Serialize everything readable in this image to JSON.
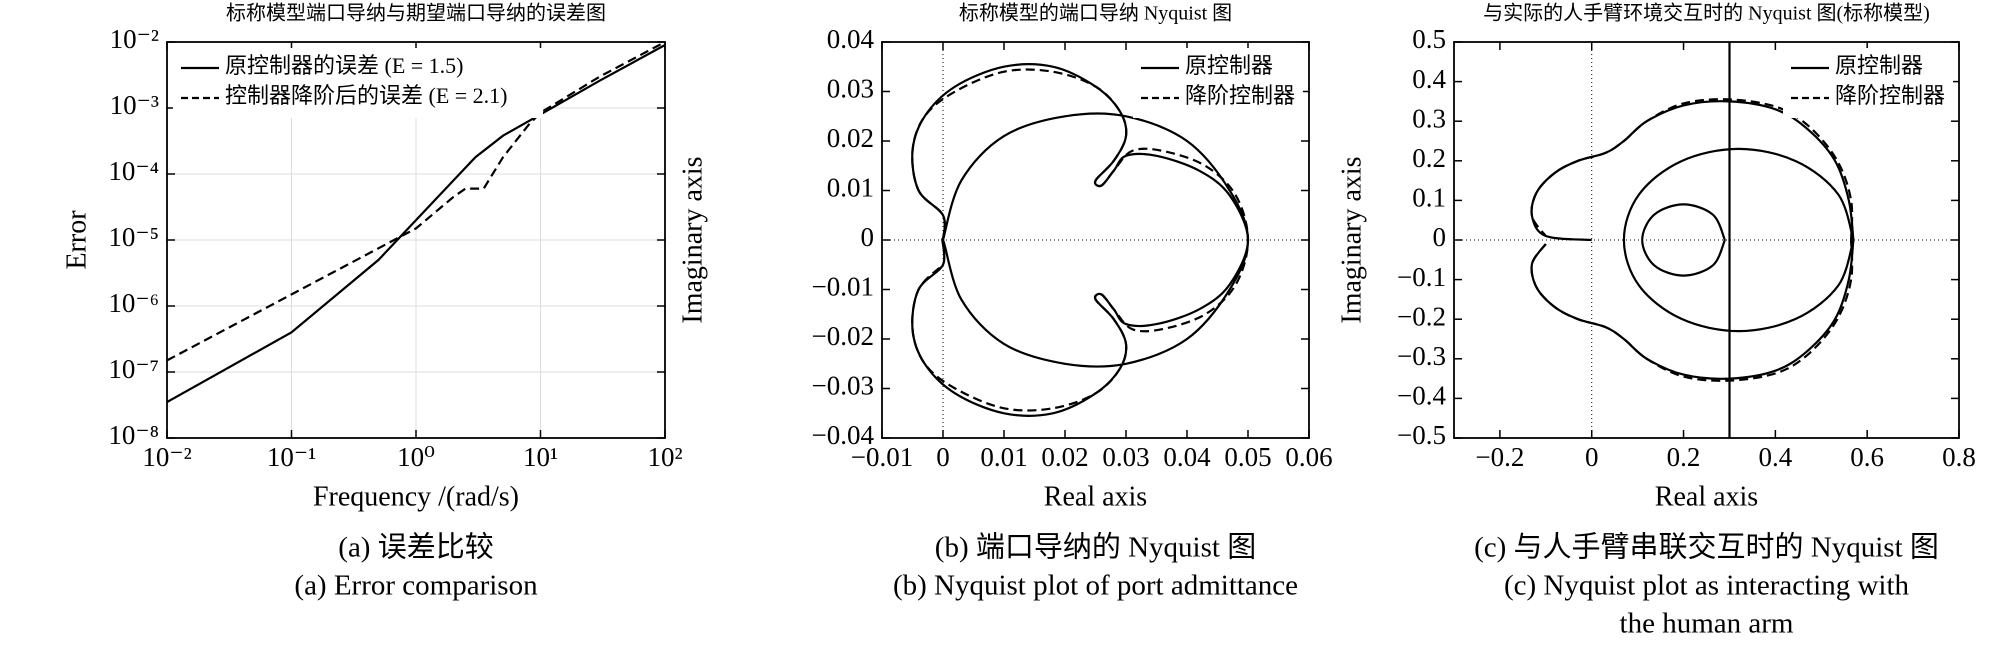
{
  "chart_data": [
    {
      "type": "line",
      "title": "标称模型端口导纳与期望端口导纳的误差图",
      "xlabel": "Frequency /(rad/s)",
      "ylabel": "Error",
      "xscale": "log",
      "yscale": "log",
      "grid": true,
      "legend": "upper left",
      "xlim": [
        0.01,
        100
      ],
      "ylim": [
        1e-08,
        0.01
      ],
      "xticks": [
        {
          "value": 0.01,
          "label": "10⁻²"
        },
        {
          "value": 0.1,
          "label": "10⁻¹"
        },
        {
          "value": 1,
          "label": "10⁰"
        },
        {
          "value": 10,
          "label": "10¹"
        },
        {
          "value": 100,
          "label": "10²"
        }
      ],
      "yticks": [
        {
          "value": 1e-08,
          "label": "10⁻⁸"
        },
        {
          "value": 1e-07,
          "label": "10⁻⁷"
        },
        {
          "value": 1e-06,
          "label": "10⁻⁶"
        },
        {
          "value": 1e-05,
          "label": "10⁻⁵"
        },
        {
          "value": 0.0001,
          "label": "10⁻⁴"
        },
        {
          "value": 0.001,
          "label": "10⁻³"
        },
        {
          "value": 0.01,
          "label": "10⁻²"
        }
      ],
      "series": [
        {
          "name": "原控制器的误差 (E = 1.5)",
          "color": "#000000",
          "linestyle": "solid",
          "x": [
            0.01,
            0.1,
            0.5,
            1,
            2,
            3,
            5,
            10,
            30,
            100
          ],
          "values": [
            3.5e-08,
            4e-07,
            5e-06,
            2e-05,
            8e-05,
            0.00018,
            0.00038,
            0.0008,
            0.0026,
            0.009
          ]
        },
        {
          "name": "控制器降阶后的误差 (E = 2.1)",
          "color": "#000000",
          "linestyle": "dashed",
          "x": [
            0.01,
            0.1,
            1,
            2,
            2.5,
            3.5,
            5,
            8,
            10,
            30,
            100
          ],
          "values": [
            1.5e-07,
            1.5e-06,
            1.5e-05,
            4.5e-05,
            6e-05,
            6e-05,
            0.00018,
            0.00055,
            0.00085,
            0.003,
            0.01
          ]
        }
      ],
      "caption": [
        "(a) 误差比较",
        "(a) Error comparison"
      ]
    },
    {
      "type": "line",
      "title": "标称模型的端口导纳 Nyquist 图",
      "xlabel": "Real axis",
      "ylabel": "Imaginary axis",
      "grid": false,
      "legend": "upper right",
      "xlim": [
        -0.01,
        0.06
      ],
      "ylim": [
        -0.04,
        0.04
      ],
      "xticks": [
        {
          "value": -0.01,
          "label": "−0.01"
        },
        0,
        0.01,
        0.02,
        0.03,
        0.04,
        0.05,
        0.06
      ],
      "yticks": [
        {
          "value": -0.04,
          "label": "−0.04"
        },
        {
          "value": -0.03,
          "label": "−0.03"
        },
        {
          "value": -0.02,
          "label": "−0.02"
        },
        {
          "value": -0.01,
          "label": "−0.01"
        },
        0,
        0.01,
        0.02,
        0.03,
        0.04
      ],
      "series": [
        {
          "name": "原控制器",
          "color": "#000000",
          "linestyle": "solid",
          "x": [
            0,
            0,
            -0.004,
            -0.005,
            -0.003,
            0.002,
            0.01,
            0.018,
            0.025,
            0.029,
            0.03,
            0.028,
            0.025,
            0.026,
            0.028,
            0.03,
            0.035,
            0.042,
            0.047,
            0.05,
            0.047,
            0.042,
            0.035,
            0.03,
            0.028,
            0.026,
            0.025,
            0.028,
            0.03,
            0.029,
            0.025,
            0.018,
            0.01,
            0.002,
            -0.003,
            -0.005,
            -0.004,
            0,
            0,
            0.003,
            0.01,
            0.02,
            0.03,
            0.04,
            0.047,
            0.05,
            0.047,
            0.04,
            0.03,
            0.02,
            0.01,
            0.003,
            0
          ],
          "values": [
            0,
            0.005,
            0.01,
            0.018,
            0.025,
            0.031,
            0.035,
            0.035,
            0.031,
            0.026,
            0.021,
            0.016,
            0.012,
            0.011,
            0.014,
            0.017,
            0.017,
            0.014,
            0.009,
            0,
            -0.009,
            -0.014,
            -0.017,
            -0.017,
            -0.014,
            -0.011,
            -0.012,
            -0.016,
            -0.021,
            -0.026,
            -0.031,
            -0.035,
            -0.035,
            -0.031,
            -0.025,
            -0.018,
            -0.01,
            -0.005,
            0,
            -0.012,
            -0.021,
            -0.025,
            -0.025,
            -0.02,
            -0.01,
            0,
            0.01,
            0.02,
            0.025,
            0.025,
            0.021,
            0.012,
            0
          ]
        },
        {
          "name": "降阶控制器",
          "color": "#000000",
          "linestyle": "dashed",
          "x": [
            0,
            0,
            -0.004,
            -0.005,
            -0.003,
            0.002,
            0.01,
            0.018,
            0.025,
            0.029,
            0.03,
            0.028,
            0.025,
            0.026,
            0.028,
            0.031,
            0.036,
            0.043,
            0.048,
            0.05,
            0.048,
            0.043,
            0.036,
            0.031,
            0.028,
            0.026,
            0.025,
            0.028,
            0.03,
            0.029,
            0.025,
            0.018,
            0.01,
            0.002,
            -0.003,
            -0.005,
            -0.004,
            0
          ],
          "values": [
            0,
            0.005,
            0.01,
            0.018,
            0.025,
            0.03,
            0.034,
            0.034,
            0.031,
            0.026,
            0.021,
            0.016,
            0.012,
            0.011,
            0.014,
            0.018,
            0.018,
            0.015,
            0.009,
            0,
            -0.009,
            -0.015,
            -0.018,
            -0.018,
            -0.014,
            -0.011,
            -0.012,
            -0.016,
            -0.021,
            -0.026,
            -0.031,
            -0.034,
            -0.034,
            -0.03,
            -0.025,
            -0.018,
            -0.01,
            -0.005
          ]
        }
      ],
      "caption": [
        "(b) 端口导纳的 Nyquist 图",
        "(b) Nyquist plot of port admittance"
      ]
    },
    {
      "type": "line",
      "title": "与实际的人手臂环境交互时的 Nyquist 图(标称模型)",
      "xlabel": "Real axis",
      "ylabel": "Imaginary axis",
      "grid": false,
      "legend": "upper right",
      "xlim": [
        -0.3,
        0.8
      ],
      "ylim": [
        -0.5,
        0.5
      ],
      "xticks": [
        {
          "value": -0.2,
          "label": "−0.2"
        },
        0,
        0.2,
        0.4,
        0.6,
        0.8
      ],
      "yticks": [
        {
          "value": -0.5,
          "label": "−0.5"
        },
        {
          "value": -0.4,
          "label": "−0.4"
        },
        {
          "value": -0.3,
          "label": "−0.3"
        },
        {
          "value": -0.2,
          "label": "−0.2"
        },
        {
          "value": -0.1,
          "label": "−0.1"
        },
        0,
        0.1,
        0.2,
        0.3,
        0.4,
        0.5
      ],
      "series": [
        {
          "name": "原控制器",
          "color": "#000000",
          "linestyle": "solid",
          "x": [
            0.57,
            0.56,
            0.53,
            0.47,
            0.4,
            0.3,
            0.2,
            0.12,
            0.07,
            0.03,
            -0.03,
            -0.08,
            -0.12,
            -0.13,
            -0.1,
            0,
            null,
            -0.1,
            -0.13,
            -0.12,
            -0.08,
            -0.03,
            0.03,
            0.07,
            0.12,
            0.2,
            0.3,
            0.4,
            0.47,
            0.53,
            0.56,
            0.57,
            null,
            0.57,
            0.537,
            0.445,
            0.32,
            0.195,
            0.103,
            0.07,
            0.103,
            0.195,
            0.32,
            0.445,
            0.537,
            0.57,
            null,
            0.29,
            0.264,
            0.2,
            0.136,
            0.11,
            0.136,
            0.2,
            0.264,
            0.29,
            null,
            0.3,
            0.3
          ],
          "values": [
            0,
            0.1,
            0.2,
            0.28,
            0.33,
            0.35,
            0.34,
            0.3,
            0.25,
            0.22,
            0.2,
            0.17,
            0.12,
            0.06,
            0.01,
            0,
            null,
            -0.01,
            -0.06,
            -0.12,
            -0.17,
            -0.2,
            -0.22,
            -0.25,
            -0.3,
            -0.34,
            -0.35,
            -0.33,
            -0.28,
            -0.2,
            -0.1,
            0,
            null,
            0,
            0.115,
            0.199,
            0.23,
            0.199,
            0.115,
            0,
            -0.115,
            -0.199,
            -0.23,
            -0.199,
            -0.115,
            0,
            null,
            0,
            0.064,
            0.09,
            0.064,
            0,
            -0.064,
            -0.09,
            -0.064,
            0,
            null,
            -0.5,
            0.5
          ]
        },
        {
          "name": "降阶控制器",
          "color": "#000000",
          "linestyle": "dashed",
          "x": [
            0.565,
            0.565,
            0.535,
            0.475,
            0.405,
            0.3,
            0.2,
            0.12,
            0.07,
            0.03,
            -0.03,
            -0.08,
            -0.12,
            -0.13,
            -0.1,
            null,
            -0.1,
            -0.13,
            -0.12,
            -0.08,
            -0.03,
            0.03,
            0.07,
            0.12,
            0.2,
            0.3,
            0.405,
            0.475,
            0.535,
            0.565,
            0.565
          ],
          "values": [
            0,
            0.1,
            0.2,
            0.285,
            0.335,
            0.355,
            0.345,
            0.3,
            0.25,
            0.22,
            0.2,
            0.17,
            0.12,
            0.06,
            0.01,
            null,
            -0.01,
            -0.06,
            -0.12,
            -0.17,
            -0.2,
            -0.22,
            -0.25,
            -0.3,
            -0.345,
            -0.355,
            -0.335,
            -0.285,
            -0.2,
            -0.1,
            0
          ]
        }
      ],
      "caption": [
        "(c) 与人手臂串联交互时的 Nyquist 图",
        "(c) Nyquist plot as interacting with",
        "the human arm"
      ]
    }
  ]
}
